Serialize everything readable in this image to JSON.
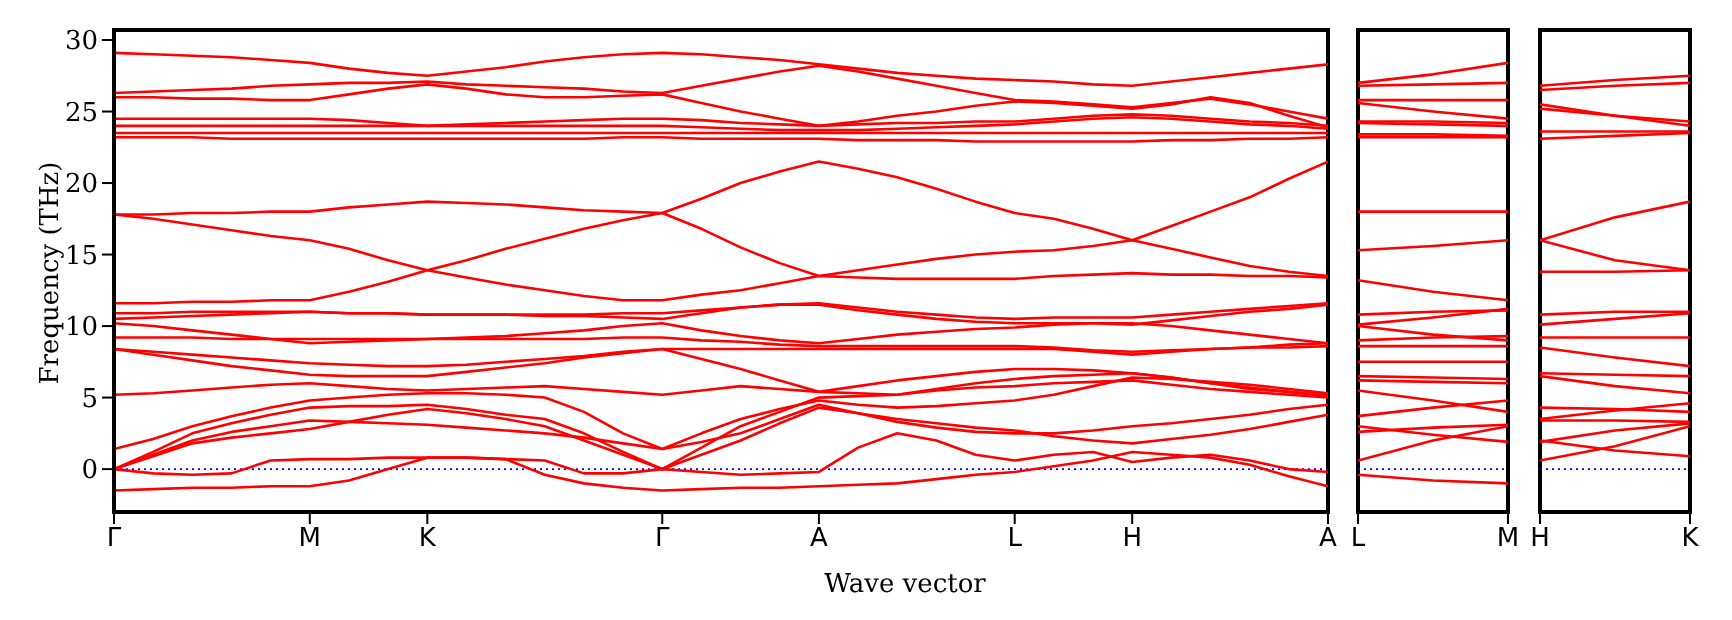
{
  "chart_data": [
    {
      "type": "line",
      "ylabel": "Frequency (THz)",
      "xlabel": "Wave vector",
      "ylim": [
        -3,
        30.7
      ],
      "yticks": [
        0,
        5,
        10,
        15,
        20,
        25,
        30
      ],
      "categories": [
        "Γ",
        null,
        null,
        null,
        null,
        "M",
        null,
        null,
        "K",
        null,
        null,
        null,
        null,
        null,
        "Γ",
        null,
        null,
        null,
        "A",
        null,
        null,
        null,
        null,
        "L",
        null,
        null,
        "H",
        null,
        null,
        null,
        null,
        "A"
      ],
      "ref_lines": [
        {
          "axis": "y",
          "value": 0,
          "color": "#0000ff",
          "line_style": "dotted"
        }
      ],
      "series": [
        {
          "color": "#ff0000",
          "values": [
            29.1,
            29.0,
            28.9,
            28.8,
            28.6,
            28.4,
            28.0,
            27.7,
            27.5,
            27.8,
            28.1,
            28.5,
            28.8,
            29.0,
            29.1,
            29.0,
            28.8,
            28.6,
            28.3,
            28.0,
            27.7,
            27.5,
            27.3,
            27.2,
            27.1,
            26.9,
            26.8,
            27.1,
            27.4,
            27.7,
            28.0,
            28.3
          ]
        },
        {
          "color": "#ff0000",
          "values": [
            26.3,
            26.4,
            26.5,
            26.6,
            26.8,
            26.9,
            27.0,
            27.0,
            27.1,
            26.9,
            26.8,
            26.7,
            26.6,
            26.4,
            26.3,
            26.8,
            27.3,
            27.8,
            28.2,
            27.8,
            27.3,
            26.8,
            26.3,
            25.8,
            25.7,
            25.5,
            25.3,
            25.6,
            25.9,
            25.5,
            25.0,
            24.5
          ]
        },
        {
          "color": "#ff0000",
          "values": [
            26.0,
            26.0,
            25.9,
            25.9,
            25.8,
            25.8,
            26.2,
            26.6,
            26.9,
            26.6,
            26.2,
            26.0,
            26.0,
            26.1,
            26.2,
            25.6,
            25.0,
            24.5,
            24.0,
            24.3,
            24.7,
            25.0,
            25.4,
            25.7,
            25.6,
            25.4,
            25.2,
            25.5,
            26.0,
            25.6,
            24.7,
            23.9
          ]
        },
        {
          "color": "#ff0000",
          "values": [
            24.5,
            24.5,
            24.5,
            24.5,
            24.5,
            24.5,
            24.4,
            24.2,
            24.0,
            24.1,
            24.2,
            24.3,
            24.4,
            24.5,
            24.5,
            24.4,
            24.2,
            24.1,
            24.0,
            24.1,
            24.2,
            24.2,
            24.3,
            24.3,
            24.5,
            24.7,
            24.8,
            24.7,
            24.5,
            24.3,
            24.2,
            24.0
          ]
        },
        {
          "color": "#ff0000",
          "values": [
            24.0,
            24.0,
            24.0,
            24.0,
            24.0,
            24.0,
            24.0,
            24.0,
            24.0,
            24.0,
            24.0,
            24.0,
            24.0,
            24.0,
            24.0,
            23.9,
            23.8,
            23.7,
            23.7,
            23.7,
            23.8,
            23.9,
            24.0,
            24.1,
            24.3,
            24.5,
            24.6,
            24.5,
            24.3,
            24.1,
            24.0,
            23.8
          ]
        },
        {
          "color": "#ff0000",
          "values": [
            23.5,
            23.5,
            23.5,
            23.5,
            23.5,
            23.5,
            23.5,
            23.5,
            23.5,
            23.5,
            23.5,
            23.5,
            23.5,
            23.5,
            23.5,
            23.5,
            23.5,
            23.5,
            23.5,
            23.5,
            23.5,
            23.5,
            23.5,
            23.5,
            23.5,
            23.5,
            23.5,
            23.5,
            23.5,
            23.5,
            23.5,
            23.5
          ]
        },
        {
          "color": "#ff0000",
          "values": [
            23.2,
            23.2,
            23.2,
            23.1,
            23.1,
            23.1,
            23.1,
            23.1,
            23.1,
            23.1,
            23.1,
            23.1,
            23.1,
            23.2,
            23.2,
            23.1,
            23.1,
            23.1,
            23.1,
            23.0,
            23.0,
            23.0,
            22.9,
            22.9,
            22.9,
            22.9,
            22.9,
            23.0,
            23.0,
            23.1,
            23.1,
            23.2
          ]
        },
        {
          "color": "#ff0000",
          "values": [
            17.8,
            17.8,
            17.9,
            17.9,
            18.0,
            18.0,
            18.3,
            18.5,
            18.7,
            18.6,
            18.5,
            18.3,
            18.1,
            18.0,
            17.9,
            18.9,
            20.0,
            20.8,
            21.5,
            21.0,
            20.4,
            19.6,
            18.7,
            17.9,
            17.5,
            16.8,
            16.0,
            17.0,
            18.0,
            19.0,
            20.3,
            21.5
          ]
        },
        {
          "color": "#ff0000",
          "values": [
            17.8,
            17.5,
            17.1,
            16.7,
            16.3,
            16.0,
            15.4,
            14.6,
            13.9,
            13.4,
            12.9,
            12.5,
            12.1,
            11.8,
            11.8,
            12.2,
            12.5,
            13.0,
            13.5,
            13.4,
            13.3,
            13.3,
            13.3,
            13.3,
            13.5,
            13.6,
            13.7,
            13.6,
            13.6,
            13.5,
            13.5,
            13.4
          ]
        },
        {
          "color": "#ff0000",
          "values": [
            11.6,
            11.6,
            11.7,
            11.7,
            11.8,
            11.8,
            12.4,
            13.1,
            13.9,
            14.6,
            15.4,
            16.1,
            16.8,
            17.4,
            17.9,
            16.8,
            15.5,
            14.4,
            13.5,
            13.9,
            14.3,
            14.7,
            15.0,
            15.2,
            15.3,
            15.6,
            16.0,
            15.4,
            14.8,
            14.2,
            13.8,
            13.5
          ]
        },
        {
          "color": "#ff0000",
          "values": [
            10.9,
            10.9,
            11.0,
            11.0,
            11.0,
            11.0,
            10.9,
            10.9,
            10.8,
            10.8,
            10.8,
            10.8,
            10.8,
            10.9,
            10.9,
            11.1,
            11.3,
            11.5,
            11.6,
            11.3,
            11.0,
            10.8,
            10.6,
            10.5,
            10.6,
            10.6,
            10.6,
            10.8,
            11.0,
            11.2,
            11.4,
            11.6
          ]
        },
        {
          "color": "#ff0000",
          "values": [
            10.5,
            10.6,
            10.7,
            10.8,
            10.9,
            11.0,
            10.9,
            10.9,
            10.8,
            10.8,
            10.8,
            10.7,
            10.7,
            10.6,
            10.5,
            10.9,
            11.3,
            11.5,
            11.5,
            11.1,
            10.8,
            10.5,
            10.3,
            10.2,
            10.2,
            10.2,
            10.1,
            10.4,
            10.7,
            11.0,
            11.2,
            11.5
          ]
        },
        {
          "color": "#ff0000",
          "values": [
            10.2,
            10.0,
            9.7,
            9.4,
            9.1,
            8.8,
            8.9,
            9.0,
            9.1,
            9.2,
            9.3,
            9.5,
            9.7,
            10.0,
            10.2,
            9.7,
            9.3,
            9.0,
            8.8,
            9.1,
            9.4,
            9.6,
            9.8,
            9.9,
            10.1,
            10.2,
            10.2,
            10.0,
            9.7,
            9.4,
            9.1,
            8.8
          ]
        },
        {
          "color": "#ff0000",
          "values": [
            9.2,
            9.2,
            9.2,
            9.1,
            9.1,
            9.1,
            9.1,
            9.1,
            9.1,
            9.1,
            9.1,
            9.1,
            9.1,
            9.2,
            9.2,
            9.0,
            8.9,
            8.7,
            8.6,
            8.6,
            8.6,
            8.6,
            8.6,
            8.6,
            8.5,
            8.3,
            8.2,
            8.3,
            8.4,
            8.5,
            8.5,
            8.6
          ]
        },
        {
          "color": "#ff0000",
          "values": [
            8.4,
            8.2,
            8.0,
            7.8,
            7.6,
            7.4,
            7.3,
            7.2,
            7.2,
            7.3,
            7.5,
            7.7,
            7.9,
            8.2,
            8.4,
            8.4,
            8.4,
            8.4,
            8.4,
            8.4,
            8.4,
            8.4,
            8.4,
            8.4,
            8.4,
            8.2,
            8.0,
            8.2,
            8.4,
            8.5,
            8.7,
            8.8
          ]
        },
        {
          "color": "#ff0000",
          "values": [
            8.4,
            8.0,
            7.6,
            7.2,
            6.9,
            6.6,
            6.5,
            6.5,
            6.5,
            6.8,
            7.1,
            7.4,
            7.8,
            8.1,
            8.4,
            7.7,
            7.0,
            6.2,
            5.4,
            5.8,
            6.2,
            6.5,
            6.8,
            7.0,
            7.0,
            6.9,
            6.7,
            6.4,
            6.0,
            5.7,
            5.4,
            5.1
          ]
        },
        {
          "color": "#ff0000",
          "values": [
            5.2,
            5.3,
            5.5,
            5.7,
            5.9,
            6.0,
            5.8,
            5.6,
            5.5,
            5.6,
            5.7,
            5.8,
            5.6,
            5.4,
            5.2,
            5.5,
            5.8,
            5.6,
            5.4,
            5.3,
            5.2,
            5.6,
            6.0,
            6.3,
            6.5,
            6.6,
            6.7,
            6.4,
            6.0,
            5.6,
            5.4,
            5.2
          ]
        },
        {
          "color": "#ff0000",
          "values": [
            1.4,
            2.1,
            3.0,
            3.7,
            4.3,
            4.8,
            5.0,
            5.2,
            5.3,
            5.3,
            5.2,
            5.0,
            4.0,
            2.5,
            1.4,
            2.5,
            3.5,
            4.2,
            4.8,
            4.5,
            4.3,
            4.4,
            4.6,
            4.8,
            5.2,
            5.8,
            6.4,
            6.3,
            6.1,
            5.9,
            5.6,
            5.3
          ]
        },
        {
          "color": "#ff0000",
          "values": [
            0,
            1.2,
            2.5,
            3.2,
            3.8,
            4.3,
            4.4,
            4.4,
            4.5,
            4.2,
            3.8,
            3.5,
            2.5,
            1.2,
            0,
            1.5,
            3.0,
            4.0,
            5.0,
            5.1,
            5.2,
            5.5,
            5.7,
            5.8,
            6.0,
            6.1,
            6.2,
            5.9,
            5.6,
            5.4,
            5.2,
            5.0
          ]
        },
        {
          "color": "#ff0000",
          "values": [
            0,
            1.0,
            2.0,
            2.6,
            3.0,
            3.4,
            3.3,
            3.2,
            3.1,
            2.9,
            2.7,
            2.5,
            2.2,
            1.8,
            1.4,
            1.9,
            2.5,
            3.5,
            4.5,
            3.9,
            3.3,
            2.9,
            2.6,
            2.5,
            2.5,
            2.7,
            3.0,
            3.2,
            3.5,
            3.8,
            4.2,
            4.5
          ]
        },
        {
          "color": "#ff0000",
          "values": [
            0,
            0.9,
            1.8,
            2.2,
            2.5,
            2.8,
            3.3,
            3.8,
            4.2,
            3.9,
            3.5,
            3.0,
            2.0,
            1.0,
            0,
            1.0,
            2.0,
            3.2,
            4.3,
            3.9,
            3.5,
            3.2,
            2.9,
            2.7,
            2.3,
            2.0,
            1.8,
            2.1,
            2.4,
            2.8,
            3.3,
            3.8
          ]
        },
        {
          "color": "#ff0000",
          "values": [
            0,
            -0.3,
            -0.4,
            -0.3,
            0.6,
            0.7,
            0.7,
            0.8,
            0.8,
            0.8,
            0.7,
            0.6,
            -0.3,
            -0.3,
            0,
            -0.2,
            -0.4,
            -0.3,
            -0.2,
            1.5,
            2.5,
            2.0,
            1.0,
            0.6,
            1.0,
            1.2,
            0.5,
            0.8,
            1.0,
            0.6,
            0.0,
            -0.2
          ]
        },
        {
          "color": "#ff0000",
          "values": [
            -1.5,
            -1.4,
            -1.3,
            -1.3,
            -1.2,
            -1.2,
            -0.8,
            0.0,
            0.8,
            0.8,
            0.7,
            -0.4,
            -1.0,
            -1.3,
            -1.5,
            -1.4,
            -1.3,
            -1.3,
            -1.2,
            -1.1,
            -1.0,
            -0.7,
            -0.4,
            -0.2,
            0.2,
            0.6,
            1.2,
            1.0,
            0.8,
            0.3,
            -0.5,
            -1.2
          ]
        }
      ]
    },
    {
      "type": "line",
      "ylim": [
        -3,
        30.7
      ],
      "yticks": [
        0,
        5,
        10,
        15,
        20,
        25,
        30
      ],
      "tick_labels": "x",
      "categories": [
        "L",
        null,
        "M"
      ],
      "ref_lines": [
        {
          "axis": "y",
          "value": 0,
          "color": "#0000ff",
          "line_style": "dotted"
        }
      ],
      "series": [
        {
          "color": "#ff0000",
          "values": [
            27.0,
            27.6,
            28.4
          ]
        },
        {
          "color": "#ff0000",
          "values": [
            26.8,
            26.9,
            27.0
          ]
        },
        {
          "color": "#ff0000",
          "values": [
            25.8,
            25.8,
            25.8
          ]
        },
        {
          "color": "#ff0000",
          "values": [
            25.6,
            25.0,
            24.5
          ]
        },
        {
          "color": "#ff0000",
          "values": [
            24.3,
            24.3,
            24.2
          ]
        },
        {
          "color": "#ff0000",
          "values": [
            24.2,
            24.1,
            24.0
          ]
        },
        {
          "color": "#ff0000",
          "values": [
            23.4,
            23.4,
            23.3
          ]
        },
        {
          "color": "#ff0000",
          "values": [
            23.2,
            23.2,
            23.2
          ]
        },
        {
          "color": "#ff0000",
          "values": [
            18.0,
            18.0,
            18.0
          ]
        },
        {
          "color": "#ff0000",
          "values": [
            15.3,
            15.6,
            16.0
          ]
        },
        {
          "color": "#ff0000",
          "values": [
            13.2,
            12.4,
            11.8
          ]
        },
        {
          "color": "#ff0000",
          "values": [
            10.8,
            11.0,
            11.1
          ]
        },
        {
          "color": "#ff0000",
          "values": [
            10.1,
            10.6,
            11.2
          ]
        },
        {
          "color": "#ff0000",
          "values": [
            10.0,
            9.4,
            9.0
          ]
        },
        {
          "color": "#ff0000",
          "values": [
            9.0,
            9.2,
            9.3
          ]
        },
        {
          "color": "#ff0000",
          "values": [
            8.6,
            8.6,
            8.6
          ]
        },
        {
          "color": "#ff0000",
          "values": [
            7.5,
            7.5,
            7.5
          ]
        },
        {
          "color": "#ff0000",
          "values": [
            6.5,
            6.4,
            6.3
          ]
        },
        {
          "color": "#ff0000",
          "values": [
            6.2,
            6.1,
            6.0
          ]
        },
        {
          "color": "#ff0000",
          "values": [
            5.5,
            4.8,
            4.0
          ]
        },
        {
          "color": "#ff0000",
          "values": [
            3.7,
            4.3,
            4.8
          ]
        },
        {
          "color": "#ff0000",
          "values": [
            3.0,
            2.4,
            1.9
          ]
        },
        {
          "color": "#ff0000",
          "values": [
            2.6,
            2.9,
            3.1
          ]
        },
        {
          "color": "#ff0000",
          "values": [
            0.6,
            2.0,
            3.0
          ]
        },
        {
          "color": "#ff0000",
          "values": [
            -0.4,
            -0.8,
            -1.0
          ]
        }
      ]
    },
    {
      "type": "line",
      "ylim": [
        -3,
        30.7
      ],
      "yticks": [
        0,
        5,
        10,
        15,
        20,
        25,
        30
      ],
      "tick_labels": "x",
      "categories": [
        "H",
        null,
        "K"
      ],
      "ref_lines": [
        {
          "axis": "y",
          "value": 0,
          "color": "#0000ff",
          "line_style": "dotted"
        }
      ],
      "series": [
        {
          "color": "#ff0000",
          "values": [
            26.8,
            27.2,
            27.5
          ]
        },
        {
          "color": "#ff0000",
          "values": [
            26.5,
            26.8,
            27.0
          ]
        },
        {
          "color": "#ff0000",
          "values": [
            25.5,
            24.7,
            24.0
          ]
        },
        {
          "color": "#ff0000",
          "values": [
            25.2,
            24.7,
            24.3
          ]
        },
        {
          "color": "#ff0000",
          "values": [
            23.6,
            23.6,
            23.6
          ]
        },
        {
          "color": "#ff0000",
          "values": [
            23.1,
            23.3,
            23.5
          ]
        },
        {
          "color": "#ff0000",
          "values": [
            16.0,
            17.6,
            18.7
          ]
        },
        {
          "color": "#ff0000",
          "values": [
            16.0,
            14.6,
            13.9
          ]
        },
        {
          "color": "#ff0000",
          "values": [
            13.8,
            13.8,
            13.9
          ]
        },
        {
          "color": "#ff0000",
          "values": [
            10.8,
            11.0,
            11.0
          ]
        },
        {
          "color": "#ff0000",
          "values": [
            10.1,
            10.5,
            10.9
          ]
        },
        {
          "color": "#ff0000",
          "values": [
            9.2,
            9.2,
            9.2
          ]
        },
        {
          "color": "#ff0000",
          "values": [
            8.5,
            7.8,
            7.2
          ]
        },
        {
          "color": "#ff0000",
          "values": [
            6.7,
            6.6,
            6.5
          ]
        },
        {
          "color": "#ff0000",
          "values": [
            6.5,
            5.8,
            5.3
          ]
        },
        {
          "color": "#ff0000",
          "values": [
            4.3,
            4.2,
            4.0
          ]
        },
        {
          "color": "#ff0000",
          "values": [
            3.5,
            4.1,
            4.6
          ]
        },
        {
          "color": "#ff0000",
          "values": [
            3.4,
            3.4,
            3.3
          ]
        },
        {
          "color": "#ff0000",
          "values": [
            2.0,
            1.3,
            0.9
          ]
        },
        {
          "color": "#ff0000",
          "values": [
            1.9,
            2.7,
            3.2
          ]
        },
        {
          "color": "#ff0000",
          "values": [
            0.6,
            1.6,
            3.0
          ]
        }
      ]
    }
  ]
}
